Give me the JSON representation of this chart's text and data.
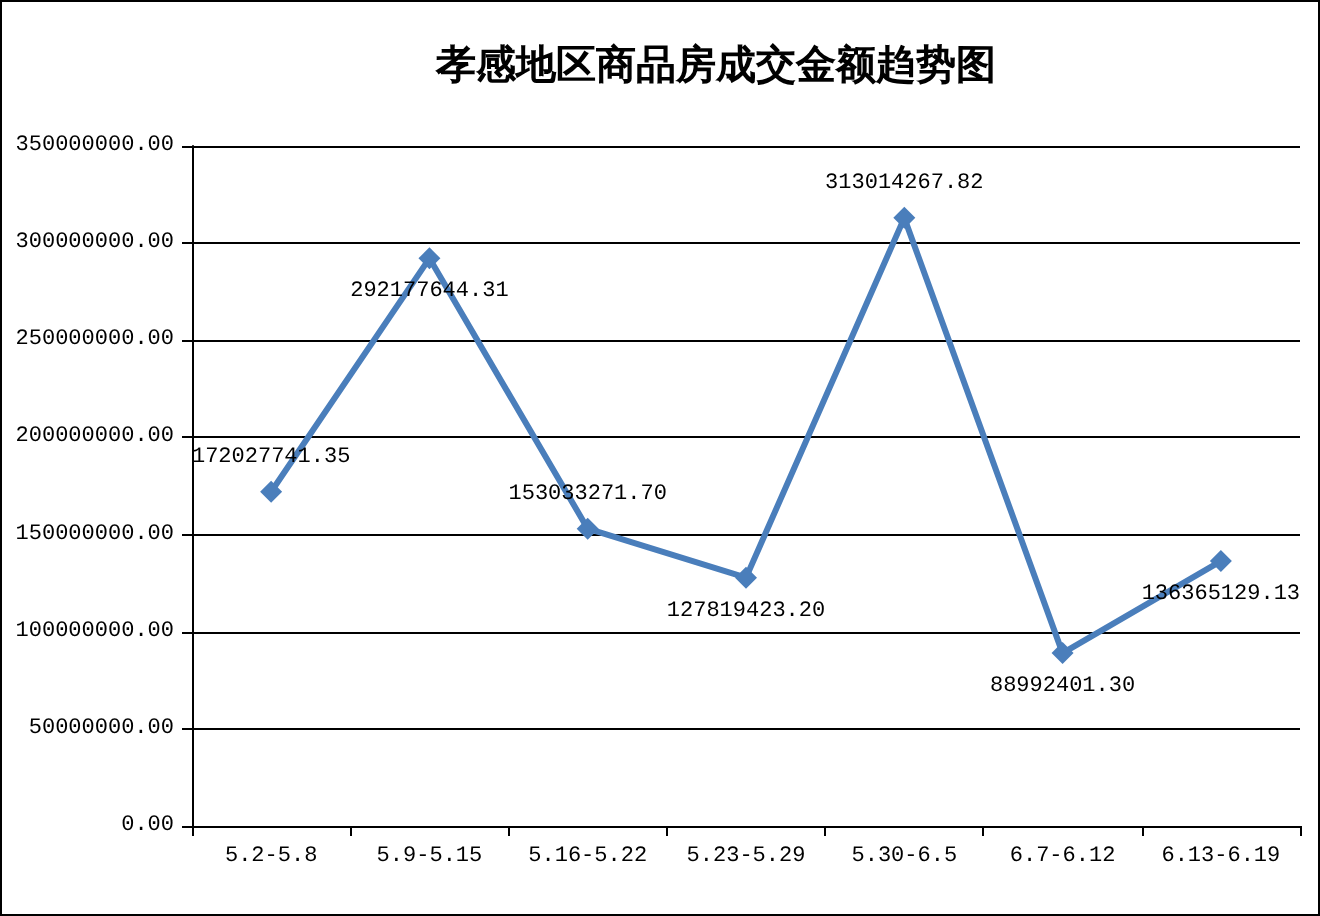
{
  "chart_data": {
    "type": "line",
    "title": "孝感地区商品房成交金额趋势图",
    "categories": [
      "5.2-5.8",
      "5.9-5.15",
      "5.16-5.22",
      "5.23-5.29",
      "5.30-6.5",
      "6.7-6.12",
      "6.13-6.19"
    ],
    "series": [
      {
        "color": "#4a7ebb",
        "values": [
          172027741.35,
          292177644.31,
          153033271.7,
          127819423.2,
          313014267.82,
          88992401.3,
          136365129.13
        ],
        "value_labels": [
          "172027741.35",
          "292177644.31",
          "153033271.70",
          "127819423.20",
          "313014267.82",
          "88992401.30",
          "136365129.13"
        ]
      }
    ],
    "ylim": [
      0,
      350000000
    ],
    "yticks": [
      {
        "value": 0,
        "label": "0.00"
      },
      {
        "value": 50000000,
        "label": "50000000.00"
      },
      {
        "value": 100000000,
        "label": "100000000.00"
      },
      {
        "value": 150000000,
        "label": "150000000.00"
      },
      {
        "value": 200000000,
        "label": "200000000.00"
      },
      {
        "value": 250000000,
        "label": "250000000.00"
      },
      {
        "value": 300000000,
        "label": "300000000.00"
      },
      {
        "value": 350000000,
        "label": "350000000.00"
      }
    ],
    "grid": "y",
    "marker": "diamond",
    "line_style": "solid"
  }
}
